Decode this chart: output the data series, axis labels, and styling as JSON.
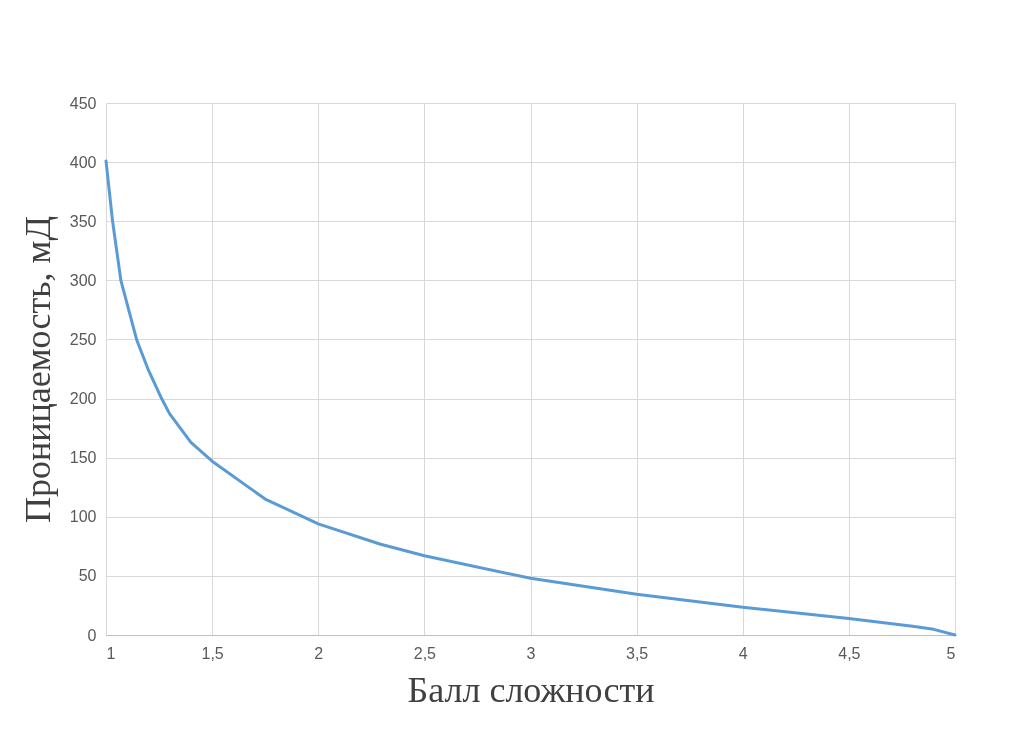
{
  "chart_data": {
    "type": "line",
    "xlabel": "Балл сложности",
    "ylabel": "Проницаемость, мД",
    "x": [
      1,
      1.031,
      1.07,
      1.144,
      1.2,
      1.262,
      1.3,
      1.4,
      1.5,
      1.75,
      2,
      2.29,
      2.5,
      3,
      3.5,
      4,
      4.5,
      4.8,
      4.9,
      5
    ],
    "series": [
      {
        "color": "#5b9bd5",
        "values": [
          401,
          350,
          300,
          250,
          224,
          200,
          187,
          163,
          147,
          115,
          94,
          77,
          67,
          48,
          34.5,
          23.5,
          14,
          7.4,
          4.8,
          0
        ]
      }
    ],
    "xlim": [
      1,
      5
    ],
    "ylim": [
      0,
      450
    ],
    "xticks": [
      1,
      {
        "value": 1.5,
        "label": "1,5"
      },
      2,
      {
        "value": 2.5,
        "label": "2,5"
      },
      3,
      {
        "value": 3.5,
        "label": "3,5"
      },
      4,
      {
        "value": 4.5,
        "label": "4,5"
      },
      5
    ],
    "yticks": [
      0,
      50,
      100,
      150,
      200,
      250,
      300,
      350,
      400,
      450
    ],
    "grid": true,
    "marker": "none",
    "line_style": "solid",
    "legend": false
  }
}
